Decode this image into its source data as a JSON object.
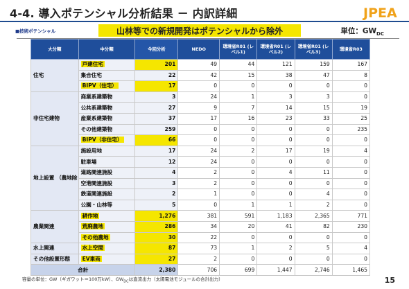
{
  "slide": {
    "title": "4-4. 導入ポテンシャル分析結果 － 内訳詳細",
    "logo_text": "JPEA",
    "tag": "■技術ポテンシャル",
    "banner": "山林等での新規開発はポテンシャルから除外",
    "unit_prefix": "単位：GW",
    "unit_sub": "DC",
    "footnote_a": "容量の単位：GW（ギガワット＝100万kW）、GW",
    "footnote_sub": "DC",
    "footnote_b": "は直流出力（太陽電池モジュールの合計出力）",
    "page": "15",
    "colors": {
      "header": "#1f4e9b",
      "highlight": "#f5e600",
      "total": "#c7d3ea"
    }
  },
  "table": {
    "headers": {
      "major": "大分類",
      "minor": "中分類",
      "analysis": "今回分析",
      "nedo": "NEDO",
      "r01_1": "環境省R01 (レベル1)",
      "r01_2": "環境省R01 (レベル2)",
      "r01_3": "環境省R01 (レベル3)",
      "r03": "環境省R03"
    },
    "rows": [
      {
        "major": "住宅",
        "minor": "戸建住宅",
        "analysis": "201",
        "nedo": "49",
        "l1": "44",
        "l2": "121",
        "l3": "159",
        "r03": "167"
      },
      {
        "major": "",
        "minor": "集合住宅",
        "analysis": "22",
        "nedo": "42",
        "l1": "15",
        "l2": "38",
        "l3": "47",
        "r03": "8"
      },
      {
        "major": "",
        "minor": "BIPV（住宅）",
        "analysis": "17",
        "nedo": "0",
        "l1": "0",
        "l2": "0",
        "l3": "0",
        "r03": "0"
      },
      {
        "major": "非住宅建物",
        "minor": "商業系建築物",
        "analysis": "3",
        "nedo": "24",
        "l1": "1",
        "l2": "3",
        "l3": "3",
        "r03": "0"
      },
      {
        "major": "",
        "minor": "公共系建築物",
        "analysis": "27",
        "nedo": "9",
        "l1": "7",
        "l2": "14",
        "l3": "15",
        "r03": "19"
      },
      {
        "major": "",
        "minor": "産業系建築物",
        "analysis": "37",
        "nedo": "17",
        "l1": "16",
        "l2": "23",
        "l3": "33",
        "r03": "25"
      },
      {
        "major": "",
        "minor": "その他建築物",
        "analysis": "259",
        "nedo": "0",
        "l1": "0",
        "l2": "0",
        "l3": "0",
        "r03": "235"
      },
      {
        "major": "",
        "minor": "BIPV（非住宅）",
        "analysis": "66",
        "nedo": "0",
        "l1": "0",
        "l2": "0",
        "l3": "0",
        "r03": "0"
      },
      {
        "major": "地上設置 （農地除く）",
        "minor": "施設用地",
        "analysis": "17",
        "nedo": "24",
        "l1": "2",
        "l2": "17",
        "l3": "19",
        "r03": "4"
      },
      {
        "major": "",
        "minor": "駐車場",
        "analysis": "12",
        "nedo": "24",
        "l1": "0",
        "l2": "0",
        "l3": "0",
        "r03": "0"
      },
      {
        "major": "",
        "minor": "道路関連施設",
        "analysis": "4",
        "nedo": "2",
        "l1": "0",
        "l2": "4",
        "l3": "11",
        "r03": "0"
      },
      {
        "major": "",
        "minor": "空港関連施設",
        "analysis": "3",
        "nedo": "2",
        "l1": "0",
        "l2": "0",
        "l3": "0",
        "r03": "0"
      },
      {
        "major": "",
        "minor": "鉄道関連施設",
        "analysis": "2",
        "nedo": "1",
        "l1": "0",
        "l2": "0",
        "l3": "4",
        "r03": "0"
      },
      {
        "major": "",
        "minor": "公園・山林等",
        "analysis": "5",
        "nedo": "0",
        "l1": "1",
        "l2": "1",
        "l3": "2",
        "r03": "0"
      },
      {
        "major": "農業関連",
        "minor": "耕作地",
        "analysis": "1,276",
        "nedo": "381",
        "l1": "591",
        "l2": "1,183",
        "l3": "2,365",
        "r03": "771"
      },
      {
        "major": "",
        "minor": "荒廃農地",
        "analysis": "286",
        "nedo": "34",
        "l1": "20",
        "l2": "41",
        "l3": "82",
        "r03": "230"
      },
      {
        "major": "",
        "minor": "その他農地",
        "analysis": "30",
        "nedo": "22",
        "l1": "0",
        "l2": "0",
        "l3": "0",
        "r03": "0"
      },
      {
        "major": "水上関連",
        "minor": "水上空間",
        "analysis": "87",
        "nedo": "73",
        "l1": "1",
        "l2": "2",
        "l3": "5",
        "r03": "4"
      },
      {
        "major": "その他設置形態",
        "minor": "EV車両",
        "analysis": "27",
        "nedo": "2",
        "l1": "0",
        "l2": "0",
        "l3": "0",
        "r03": "0"
      }
    ],
    "total": {
      "label": "合計",
      "analysis": "2,380",
      "nedo": "706",
      "l1": "699",
      "l2": "1,447",
      "l3": "2,746",
      "r03": "1,465"
    }
  }
}
